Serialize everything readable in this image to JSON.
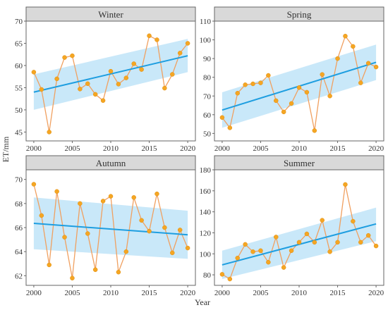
{
  "figure": {
    "ylabel": "ET/mm",
    "xlabel": "Year"
  },
  "colors": {
    "points": "#f5a623",
    "line": "#f0a060",
    "trend": "#1e9ee0",
    "band": "#bfe4f8",
    "header": "#d9d9d9",
    "frame": "#666666"
  },
  "chart_data": [
    {
      "type": "line",
      "title": "Winter",
      "xlim": [
        1999,
        2021
      ],
      "ylim": [
        43,
        70
      ],
      "xticks": [
        "2000",
        "2005",
        "2010",
        "2015",
        "2020"
      ],
      "yticks": [
        "45",
        "50",
        "55",
        "60",
        "65",
        "70"
      ],
      "years": [
        2000,
        2001,
        2002,
        2003,
        2004,
        2005,
        2006,
        2007,
        2008,
        2009,
        2010,
        2011,
        2012,
        2013,
        2014,
        2015,
        2016,
        2017,
        2018,
        2019,
        2020
      ],
      "values": [
        58.5,
        54.6,
        45.0,
        57.0,
        61.8,
        62.2,
        54.7,
        55.9,
        53.5,
        52.1,
        58.7,
        55.8,
        57.2,
        60.4,
        59.1,
        66.7,
        65.8,
        54.9,
        58.0,
        62.8,
        65.0
      ],
      "trend": [
        54.0,
        62.2
      ],
      "band_lower": [
        50.0,
        58.5
      ],
      "band_upper": [
        58.0,
        66.0
      ]
    },
    {
      "type": "line",
      "title": "Spring",
      "xlim": [
        1999,
        2021
      ],
      "ylim": [
        46,
        110
      ],
      "xticks": [
        "2000",
        "2005",
        "2010",
        "2015",
        "2020"
      ],
      "yticks": [
        "50",
        "60",
        "70",
        "80",
        "90",
        "100",
        "110"
      ],
      "years": [
        2000,
        2001,
        2002,
        2003,
        2004,
        2005,
        2006,
        2007,
        2008,
        2009,
        2010,
        2011,
        2012,
        2013,
        2014,
        2015,
        2016,
        2017,
        2018,
        2019,
        2020
      ],
      "values": [
        58.5,
        53.0,
        71.5,
        76.0,
        76.5,
        77.0,
        81.0,
        67.5,
        61.5,
        66.0,
        74.5,
        72.0,
        51.5,
        81.5,
        70.0,
        90.0,
        102.0,
        96.5,
        77.0,
        87.5,
        85.5
      ],
      "trend": [
        62.5,
        88.0
      ],
      "band_lower": [
        53.0,
        78.5
      ],
      "band_upper": [
        72.0,
        97.5
      ]
    },
    {
      "type": "line",
      "title": "Autumn",
      "xlim": [
        1999,
        2021
      ],
      "ylim": [
        61.2,
        70.8
      ],
      "xticks": [
        "2000",
        "2005",
        "2010",
        "2015",
        "2020"
      ],
      "yticks": [
        "62",
        "64",
        "66",
        "68",
        "70"
      ],
      "years": [
        2000,
        2001,
        2002,
        2003,
        2004,
        2005,
        2006,
        2007,
        2008,
        2009,
        2010,
        2011,
        2012,
        2013,
        2014,
        2015,
        2016,
        2017,
        2018,
        2019,
        2020
      ],
      "values": [
        69.6,
        67.0,
        62.9,
        69.0,
        65.2,
        61.8,
        68.0,
        65.5,
        62.5,
        68.2,
        68.6,
        62.3,
        64.0,
        68.5,
        66.6,
        65.7,
        68.8,
        66.0,
        63.9,
        65.8,
        64.3
      ],
      "trend": [
        66.35,
        65.4
      ],
      "band_lower": [
        64.2,
        63.4
      ],
      "band_upper": [
        68.5,
        67.4
      ]
    },
    {
      "type": "line",
      "title": "Summer",
      "xlim": [
        1999,
        2021
      ],
      "ylim": [
        70,
        180
      ],
      "xticks": [
        "2000",
        "2005",
        "2010",
        "2015",
        "2020"
      ],
      "yticks": [
        "80",
        "100",
        "120",
        "140",
        "160",
        "180"
      ],
      "years": [
        2000,
        2001,
        2002,
        2003,
        2004,
        2005,
        2006,
        2007,
        2008,
        2009,
        2010,
        2011,
        2012,
        2013,
        2014,
        2015,
        2016,
        2017,
        2018,
        2019,
        2020
      ],
      "values": [
        80.5,
        76.0,
        96.0,
        109.0,
        102.0,
        103.0,
        92.0,
        116.0,
        87.0,
        103.0,
        111.0,
        119.0,
        111.0,
        132.0,
        102.0,
        111.0,
        166.0,
        131.0,
        111.0,
        117.5,
        107.5
      ],
      "trend": [
        89.5,
        128.5
      ],
      "band_lower": [
        76.0,
        112.0
      ],
      "band_upper": [
        103.0,
        144.0
      ]
    }
  ]
}
